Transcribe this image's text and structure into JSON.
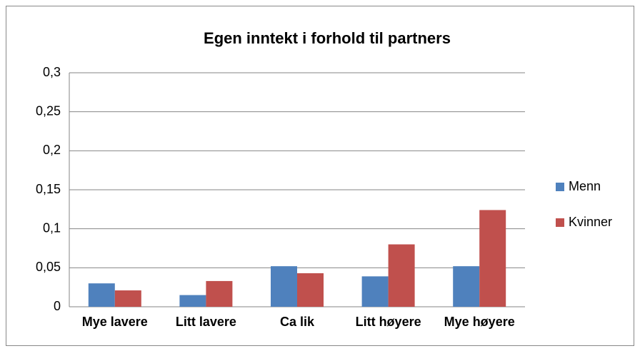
{
  "chart_data": {
    "type": "bar",
    "title": "Egen inntekt i forhold til partners",
    "categories": [
      "Mye lavere",
      "Litt lavere",
      "Ca lik",
      "Litt høyere",
      "Mye høyere"
    ],
    "series": [
      {
        "name": "Menn",
        "color": "#4f81bd",
        "values": [
          0.03,
          0.015,
          0.052,
          0.039,
          0.052
        ]
      },
      {
        "name": "Kvinner",
        "color": "#c0504d",
        "values": [
          0.021,
          0.033,
          0.043,
          0.08,
          0.124
        ]
      }
    ],
    "ylim": [
      0,
      0.3
    ],
    "yticks": [
      0,
      {
        "value": 0.05,
        "label": "0,05"
      },
      {
        "value": 0.1,
        "label": "0,1"
      },
      {
        "value": 0.15,
        "label": "0,15"
      },
      {
        "value": 0.2,
        "label": "0,2"
      },
      {
        "value": 0.25,
        "label": "0,25"
      },
      {
        "value": 0.3,
        "label": "0,3"
      }
    ],
    "grid": true,
    "legend": "right"
  }
}
